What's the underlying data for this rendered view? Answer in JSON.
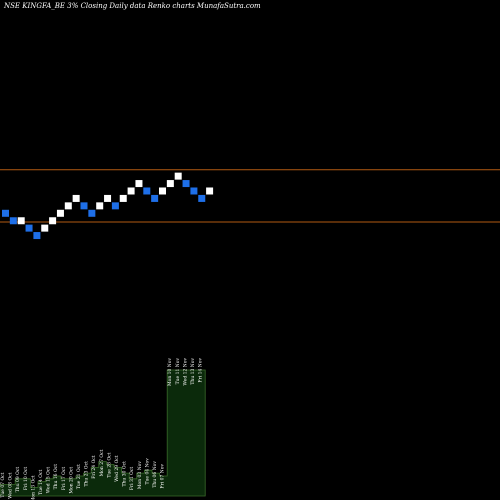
{
  "chart_data": {
    "type": "renko",
    "title": "NSE KINGFA_BE 3% Closing Daily data Renko charts MunafaSutra.com",
    "colors": {
      "background": "#000000",
      "up_brick": "#ffffff",
      "down_brick": "#1e6fe8",
      "price_line": "#b25a12",
      "volume_fill": "#0b2a0b",
      "volume_stroke": "#3a6a2a",
      "text": "#ffffff"
    },
    "price_ylim": [
      2585,
      3555
    ],
    "levels": [
      3140,
      2995
    ],
    "bricks": [
      {
        "dir": "down",
        "level": 3019.3
      },
      {
        "dir": "down",
        "level": 2998.6
      },
      {
        "dir": "up",
        "level": 2998.6
      },
      {
        "dir": "down",
        "level": 2978.2
      },
      {
        "dir": "down",
        "level": 2957.6
      },
      {
        "dir": "up",
        "level": 2978.2
      },
      {
        "dir": "up",
        "level": 2998.6
      },
      {
        "dir": "up",
        "level": 3019.3
      },
      {
        "dir": "up",
        "level": 3039.9
      },
      {
        "dir": "up",
        "level": 3060.5
      },
      {
        "dir": "down",
        "level": 3039.9
      },
      {
        "dir": "down",
        "level": 3019.3
      },
      {
        "dir": "up",
        "level": 3039.9
      },
      {
        "dir": "up",
        "level": 3060.5
      },
      {
        "dir": "down",
        "level": 3039.9
      },
      {
        "dir": "up",
        "level": 3060.5
      },
      {
        "dir": "up",
        "level": 3081.1
      },
      {
        "dir": "up",
        "level": 3101.7
      },
      {
        "dir": "down",
        "level": 3081.1
      },
      {
        "dir": "down",
        "level": 3060.5
      },
      {
        "dir": "up",
        "level": 3081.1
      },
      {
        "dir": "up",
        "level": 3101.7
      },
      {
        "dir": "up",
        "level": 3122.3
      },
      {
        "dir": "down",
        "level": 3101.7
      },
      {
        "dir": "down",
        "level": 3081.1
      },
      {
        "dir": "down",
        "level": 3060.5
      },
      {
        "dir": "up",
        "level": 3081.1
      }
    ],
    "date_labels": [
      "Tue 07 Oct",
      "Wed 08 Oct",
      "Thu 09 Oct",
      "Fri 10 Oct",
      "Mon 13 Oct",
      "Tue 14 Oct",
      "Wed 15 Oct",
      "Thu 16 Oct",
      "Fri 17 Oct",
      "Mon 20 Oct",
      "Tue 21 Oct",
      "Thu 23 Oct",
      "Fri 24 Oct",
      "Mon 27 Oct",
      "Tue 28 Oct",
      "Wed 29 Oct",
      "Thu 30 Oct",
      "Fri 31 Oct",
      "Mon 03 Nov",
      "Tue 04 Nov",
      "Thu 06 Nov",
      "Fri 07 Nov",
      "Mon 10 Nov",
      "Tue 11 Nov",
      "Wed 12 Nov",
      "Thu 13 Nov",
      "Fri 14 Nov"
    ],
    "volume": [
      4,
      4,
      6,
      6,
      3,
      5,
      6,
      7,
      6,
      6,
      7,
      8,
      10,
      12,
      11,
      10,
      8,
      6,
      8,
      9,
      8,
      7,
      44,
      44,
      44,
      44,
      44
    ],
    "volume_ylim": [
      0,
      44
    ]
  }
}
